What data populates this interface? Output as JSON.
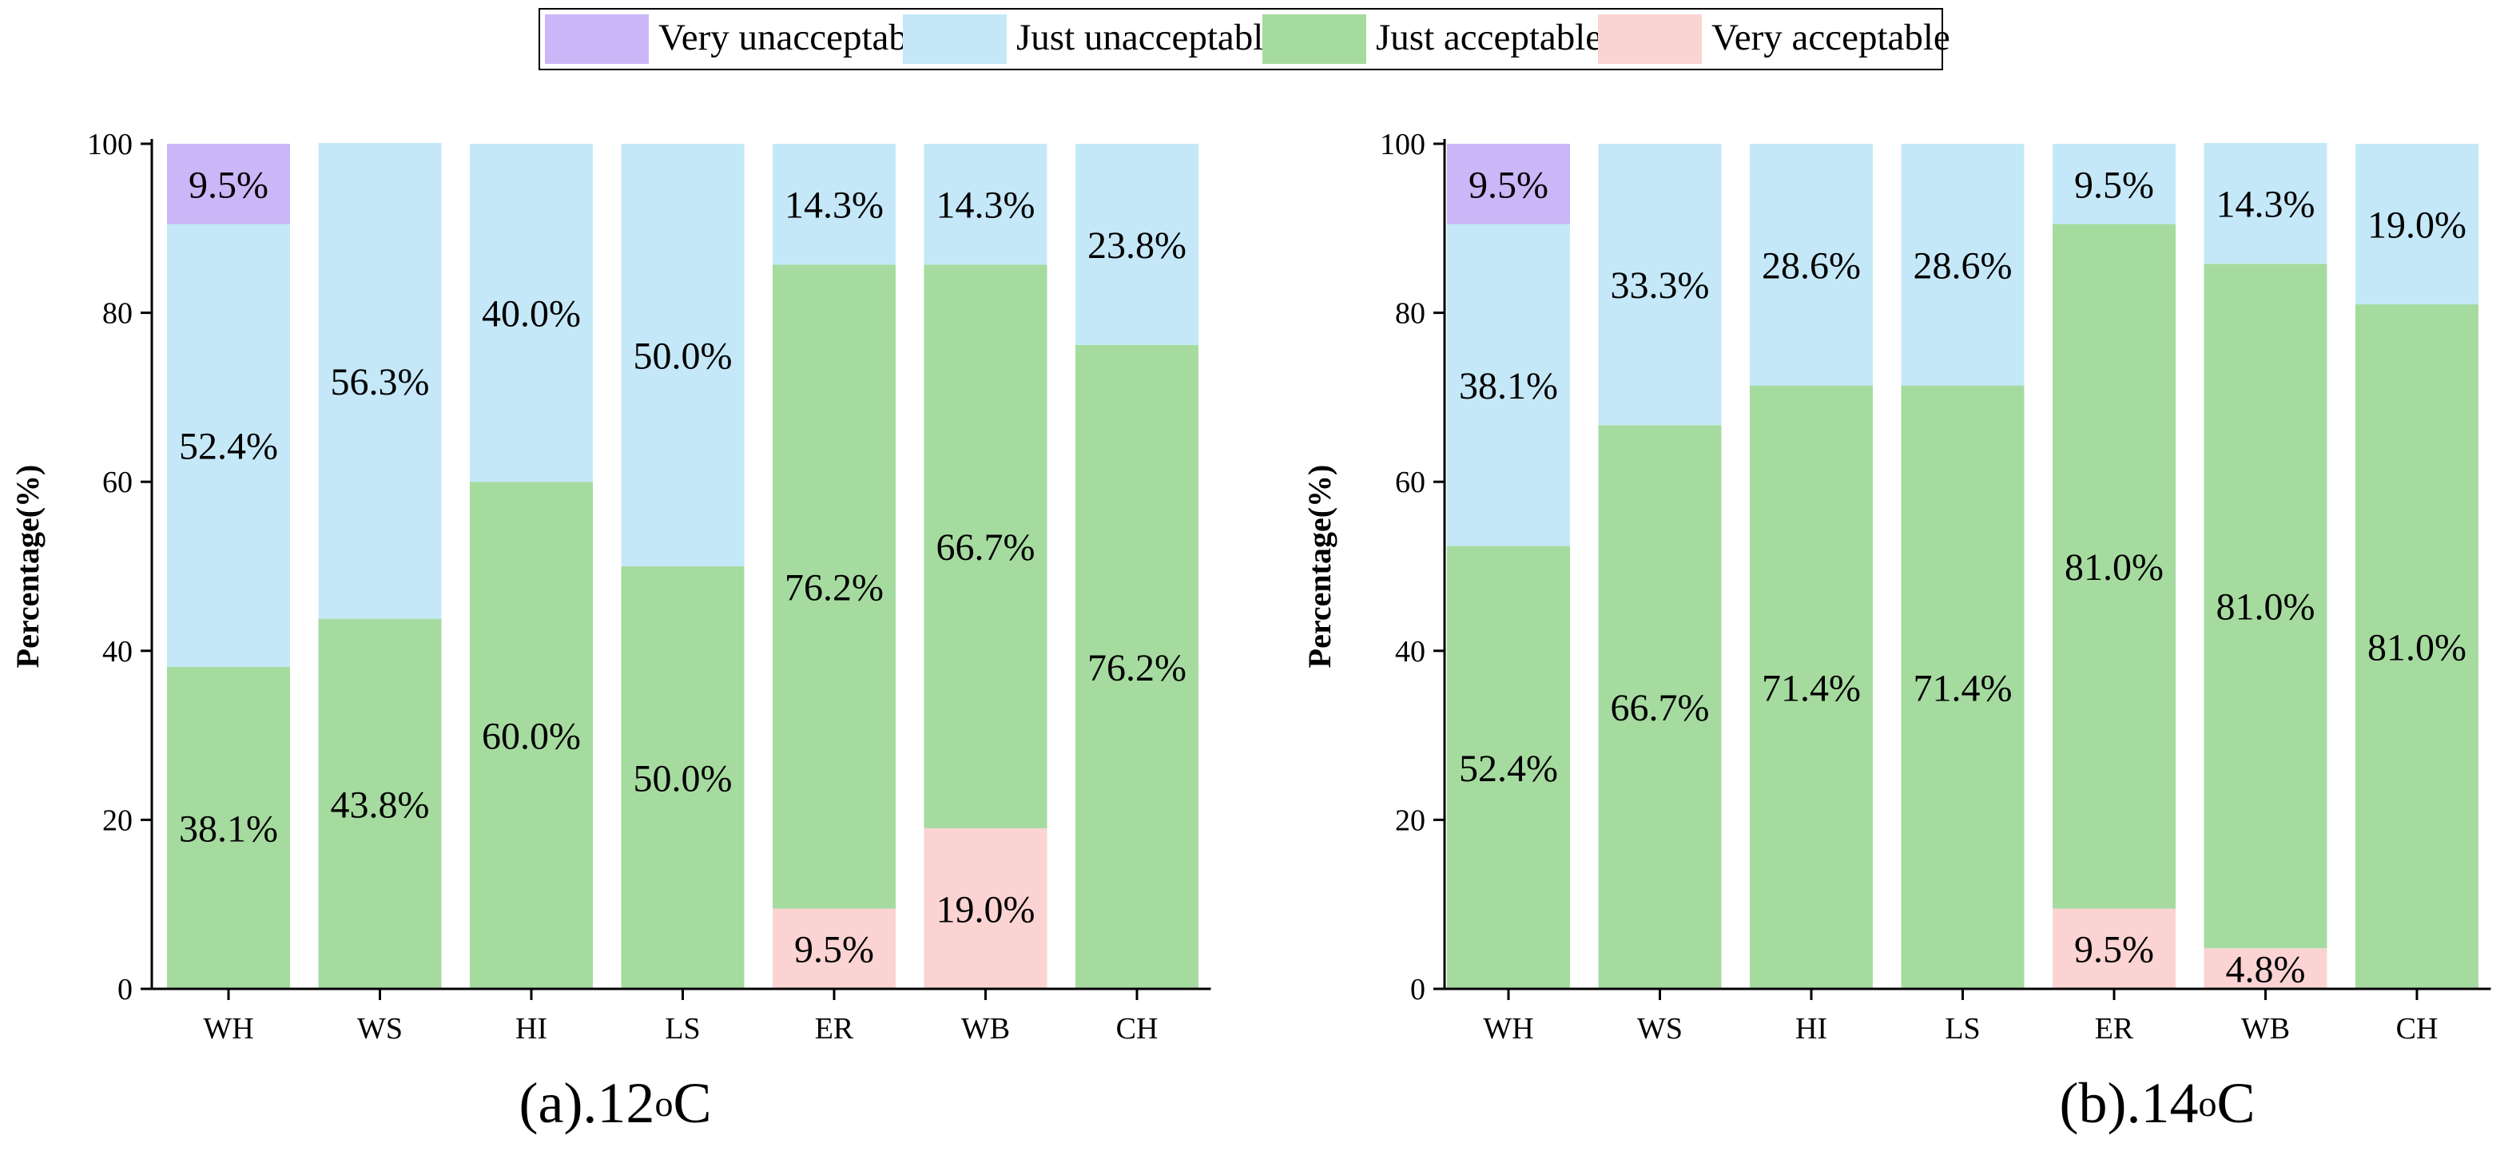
{
  "legend": {
    "items": [
      {
        "key": "very_unacceptable",
        "label": "Very unacceptable",
        "color": "#cbb6f7"
      },
      {
        "key": "just_unacceptable",
        "label": "Just unacceptable",
        "color": "#c5e8f8"
      },
      {
        "key": "just_acceptable",
        "label": "Just acceptable",
        "color": "#a6dba0"
      },
      {
        "key": "very_acceptable",
        "label": "Very acceptable",
        "color": "#fbd3d3"
      }
    ]
  },
  "chart_data": [
    {
      "type": "bar",
      "stacked": true,
      "caption_prefix": "(a).12",
      "caption_super": "o",
      "caption_suffix": "C",
      "ylabel": "Percentage(%)",
      "ylim": [
        0,
        100
      ],
      "yticks": [
        "0",
        "20",
        "40",
        "60",
        "80",
        "100"
      ],
      "categories": [
        "WH",
        "WS",
        "HI",
        "LS",
        "ER",
        "WB",
        "CH"
      ],
      "series": [
        {
          "name": "Very acceptable",
          "values": [
            0,
            0,
            0,
            0,
            9.5,
            19.0,
            0
          ],
          "labels": [
            "",
            "",
            "",
            "",
            "9.5%",
            "19.0%",
            ""
          ]
        },
        {
          "name": "Just acceptable",
          "values": [
            38.1,
            43.8,
            60.0,
            50.0,
            76.2,
            66.7,
            76.2
          ],
          "labels": [
            "38.1%",
            "43.8%",
            "60.0%",
            "50.0%",
            "76.2%",
            "66.7%",
            "76.2%"
          ]
        },
        {
          "name": "Just unacceptable",
          "values": [
            52.4,
            56.3,
            40.0,
            50.0,
            14.3,
            14.3,
            23.8
          ],
          "labels": [
            "52.4%",
            "56.3%",
            "40.0%",
            "50.0%",
            "14.3%",
            "14.3%",
            "23.8%"
          ]
        },
        {
          "name": "Very unacceptable",
          "values": [
            9.5,
            0,
            0,
            0,
            0,
            0,
            0
          ],
          "labels": [
            "9.5%",
            "",
            "",
            "",
            "",
            "",
            ""
          ]
        }
      ]
    },
    {
      "type": "bar",
      "stacked": true,
      "caption_prefix": "(b).14",
      "caption_super": "o",
      "caption_suffix": "C",
      "ylabel": "Percentage(%)",
      "ylim": [
        0,
        100
      ],
      "yticks": [
        "0",
        "20",
        "40",
        "60",
        "80",
        "100"
      ],
      "categories": [
        "WH",
        "WS",
        "HI",
        "LS",
        "ER",
        "WB",
        "CH"
      ],
      "series": [
        {
          "name": "Very acceptable",
          "values": [
            0,
            0,
            0,
            0,
            9.5,
            4.8,
            0
          ],
          "labels": [
            "",
            "",
            "",
            "",
            "9.5%",
            "4.8%",
            ""
          ]
        },
        {
          "name": "Just acceptable",
          "values": [
            52.4,
            66.7,
            71.4,
            71.4,
            81.0,
            81.0,
            81.0
          ],
          "labels": [
            "52.4%",
            "66.7%",
            "71.4%",
            "71.4%",
            "81.0%",
            "81.0%",
            "81.0%"
          ]
        },
        {
          "name": "Just unacceptable",
          "values": [
            38.1,
            33.3,
            28.6,
            28.6,
            9.5,
            14.3,
            19.0
          ],
          "labels": [
            "38.1%",
            "33.3%",
            "28.6%",
            "28.6%",
            "9.5%",
            "14.3%",
            "19.0%"
          ]
        },
        {
          "name": "Very unacceptable",
          "values": [
            9.5,
            0,
            0,
            0,
            0,
            0,
            0
          ],
          "labels": [
            "9.5%",
            "",
            "",
            "",
            "",
            "",
            ""
          ]
        }
      ]
    }
  ]
}
